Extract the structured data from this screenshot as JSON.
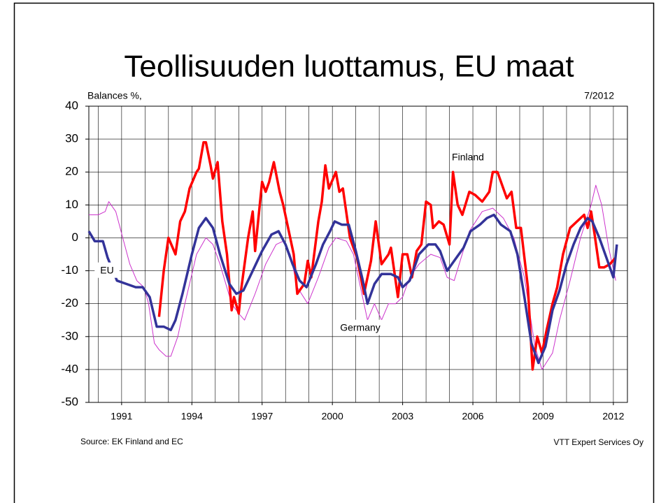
{
  "chart_data": {
    "type": "line",
    "title": "Teollisuuden luottamus, EU maat",
    "y_label": "Balances %,",
    "date": "7/2012",
    "source": "Source: EK Finland and EC",
    "credit": "VTT Expert Services Oy",
    "xlim": [
      1989.6,
      2012.6
    ],
    "xticks": [
      1991,
      1994,
      1997,
      2000,
      2003,
      2006,
      2009,
      2012
    ],
    "x_gridlines": [
      1990,
      1991,
      1992,
      1993,
      1994,
      1995,
      1996,
      1997,
      1998,
      1999,
      2000,
      2001,
      2002,
      2003,
      2004,
      2005,
      2006,
      2007,
      2008,
      2009,
      2010,
      2011,
      2012
    ],
    "ylim": [
      -50,
      40
    ],
    "yticks": [
      -50,
      -40,
      -30,
      -20,
      -10,
      0,
      10,
      20,
      30,
      40
    ],
    "grid": true,
    "series": [
      {
        "name": "EU",
        "color": "#cc33cc",
        "line_width": 1,
        "x": [
          1989.6,
          1990.0,
          1990.3,
          1990.45,
          1990.75,
          1991.05,
          1991.35,
          1991.65,
          1991.95,
          1992.15,
          1992.4,
          1992.6,
          1992.9,
          1993.1,
          1993.4,
          1993.7,
          1994.2,
          1994.6,
          1994.9,
          1995.2,
          1995.7,
          1996.0,
          1996.25,
          1996.7,
          1997.15,
          1997.6,
          1997.9,
          1998.2,
          1998.5,
          1998.95,
          1999.4,
          1999.85,
          2000.15,
          2000.6,
          2000.9,
          2001.2,
          2001.5,
          2001.8,
          2002.1,
          2002.4,
          2002.7,
          2003.0,
          2003.3,
          2003.7,
          2004.2,
          2004.6,
          2004.9,
          2005.2,
          2005.5,
          2005.85,
          2006.4,
          2006.85,
          2007.3,
          2007.75,
          2008.2,
          2008.65,
          2008.95,
          2009.4,
          2009.7,
          2010.15,
          2010.6,
          2011.05,
          2011.25,
          2011.5,
          2011.8,
          2012.1
        ],
        "values": [
          7,
          7,
          8,
          11,
          8,
          0,
          -8,
          -13,
          -15,
          -20,
          -32,
          -34,
          -36,
          -36,
          -30,
          -20,
          -5,
          0,
          -2,
          -8,
          -20,
          -23,
          -25,
          -17,
          -8,
          -2,
          -1,
          -5,
          -15,
          -20,
          -12,
          -3,
          0,
          -1,
          -5,
          -15,
          -25,
          -20,
          -25,
          -20,
          -20,
          -18,
          -12,
          -8,
          -5,
          -6,
          -12,
          -13,
          -6,
          2,
          8,
          9,
          6,
          0,
          -12,
          -33,
          -40,
          -35,
          -25,
          -13,
          0,
          10,
          16,
          10,
          -3,
          -13
        ]
      },
      {
        "name": "Finland",
        "color": "#ff0000",
        "line_width": 3.5,
        "x": [
          1992.6,
          1992.8,
          1993.0,
          1993.3,
          1993.5,
          1993.7,
          1993.9,
          1994.2,
          1994.3,
          1994.5,
          1994.6,
          1994.8,
          1994.9,
          1995.1,
          1995.3,
          1995.5,
          1995.7,
          1995.8,
          1996.0,
          1996.1,
          1996.4,
          1996.6,
          1996.7,
          1997.0,
          1997.15,
          1997.3,
          1997.5,
          1997.75,
          1997.9,
          1998.35,
          1998.5,
          1998.8,
          1998.95,
          1999.1,
          1999.4,
          1999.55,
          1999.7,
          1999.85,
          2000.15,
          2000.3,
          2000.45,
          2000.75,
          2001.05,
          2001.35,
          2001.65,
          2001.85,
          2002.1,
          2002.4,
          2002.5,
          2002.8,
          2003.0,
          2003.2,
          2003.4,
          2003.6,
          2003.8,
          2004.0,
          2004.2,
          2004.3,
          2004.55,
          2004.75,
          2005.0,
          2005.15,
          2005.35,
          2005.55,
          2005.85,
          2006.1,
          2006.4,
          2006.7,
          2006.85,
          2007.05,
          2007.25,
          2007.45,
          2007.65,
          2007.85,
          2008.05,
          2008.35,
          2008.55,
          2008.75,
          2008.95,
          2009.15,
          2009.4,
          2009.6,
          2009.85,
          2010.15,
          2010.45,
          2010.75,
          2010.9,
          2011.05,
          2011.2,
          2011.4,
          2011.6,
          2011.85,
          2012.1
        ],
        "values": [
          -24,
          -10,
          0,
          -5,
          5,
          8,
          15,
          20,
          21,
          29,
          29,
          22,
          18,
          23,
          5,
          -5,
          -22,
          -18,
          -23,
          -16,
          0,
          8,
          -4,
          17,
          14,
          17,
          23,
          14,
          10,
          -5,
          -17,
          -14,
          -7,
          -12,
          5,
          11,
          22,
          15,
          20,
          14,
          15,
          0,
          -6,
          -17,
          -7,
          5,
          -8,
          -5,
          -3,
          -18,
          -5,
          -5,
          -12,
          -4,
          -2,
          11,
          10,
          3,
          5,
          4,
          -2,
          20,
          10,
          7,
          14,
          13,
          11,
          14,
          20,
          20,
          16,
          12,
          14,
          3,
          3,
          -15,
          -40,
          -30,
          -35,
          -28,
          -20,
          -15,
          -5,
          3,
          5,
          7,
          3,
          8,
          1,
          -9,
          -9,
          -8,
          -6
        ]
      },
      {
        "name": "Germany",
        "color": "#333399",
        "line_width": 3.5,
        "x": [
          1989.6,
          1989.85,
          1990.2,
          1990.4,
          1990.8,
          1991.2,
          1991.6,
          1991.9,
          1992.2,
          1992.5,
          1992.8,
          1993.1,
          1993.3,
          1993.6,
          1994.0,
          1994.3,
          1994.6,
          1994.9,
          1995.2,
          1995.6,
          1995.9,
          1996.2,
          1996.6,
          1997.0,
          1997.4,
          1997.7,
          1998.0,
          1998.3,
          1998.6,
          1998.9,
          1999.3,
          1999.6,
          1999.9,
          2000.1,
          2000.4,
          2000.7,
          2001.0,
          2001.3,
          2001.5,
          2001.8,
          2002.1,
          2002.5,
          2002.8,
          2003.0,
          2003.3,
          2003.7,
          2004.1,
          2004.4,
          2004.6,
          2004.9,
          2005.3,
          2005.6,
          2005.9,
          2006.3,
          2006.6,
          2006.9,
          2007.2,
          2007.6,
          2007.9,
          2008.2,
          2008.5,
          2008.8,
          2009.1,
          2009.4,
          2009.7,
          2010.0,
          2010.3,
          2010.6,
          2010.9,
          2011.1,
          2011.4,
          2011.7,
          2012.0,
          2012.15
        ],
        "values": [
          2,
          -1,
          -1,
          -6,
          -13,
          -14,
          -15,
          -15,
          -18,
          -27,
          -27,
          -28,
          -25,
          -17,
          -5,
          3,
          6,
          3,
          -5,
          -14,
          -17,
          -16,
          -10,
          -4,
          1,
          2,
          -2,
          -8,
          -13,
          -15,
          -8,
          -2,
          2,
          5,
          4,
          4,
          -4,
          -13,
          -20,
          -14,
          -11,
          -11,
          -12,
          -15,
          -13,
          -5,
          -2,
          -2,
          -4,
          -10,
          -6,
          -3,
          2,
          4,
          6,
          7,
          4,
          2,
          -5,
          -18,
          -32,
          -38,
          -33,
          -22,
          -16,
          -8,
          -2,
          3,
          6,
          5,
          0,
          -6,
          -12,
          -2
        ]
      }
    ]
  }
}
